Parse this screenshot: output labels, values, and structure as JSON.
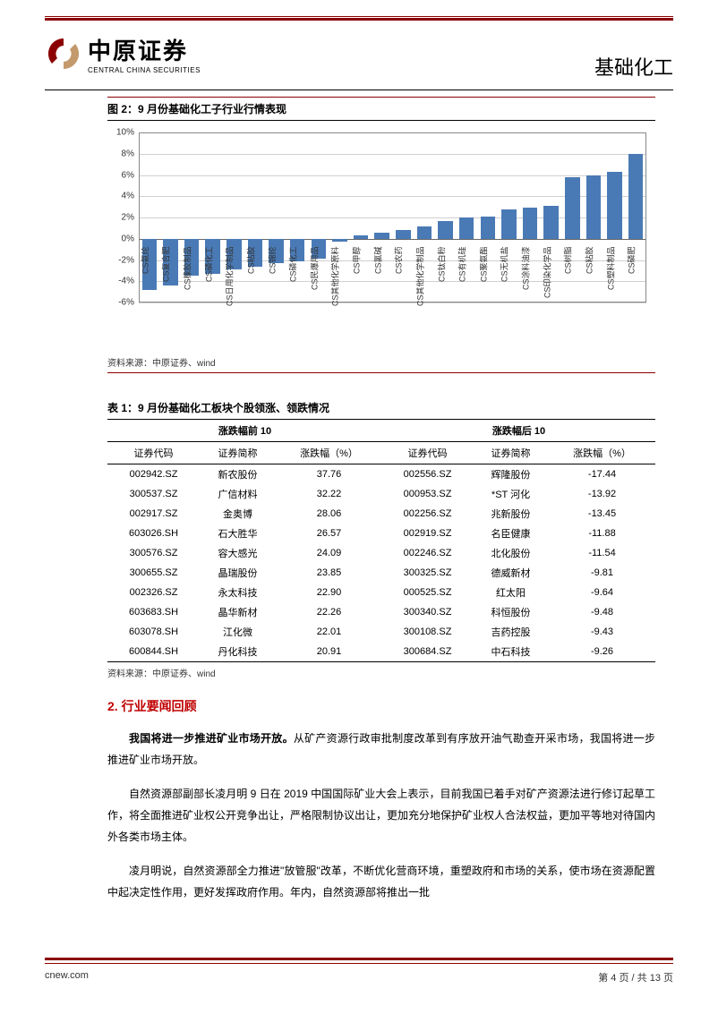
{
  "header": {
    "logo_cn": "中原证券",
    "logo_en": "CENTRAL CHINA SECURITIES",
    "title": "基础化工",
    "logo_color": "#8b0000"
  },
  "figure": {
    "title": "图 2：9 月份基础化工子行业行情表现",
    "source": "资料来源：中原证券、wind",
    "chart": {
      "type": "bar",
      "ylim": [
        -6,
        10
      ],
      "ytick_step": 2,
      "ytick_suffix": "%",
      "bar_color": "#4a7ab5",
      "grid_color": "#d0d0d0",
      "border_color": "#888888",
      "background_color": "#ffffff",
      "label_fontsize": 9,
      "axis_fontsize": 10,
      "categories": [
        "CS氨纶",
        "CS复合肥",
        "CS橡胶制品",
        "CS磷化工",
        "CS日用化学制品",
        "CS粘胶",
        "CS锦纶",
        "CS磷化工",
        "CS民爆用品",
        "CS其他化学原料",
        "CS甲醇",
        "CS氯碱",
        "CS农药",
        "CS其他化学制品",
        "CS钛白粉",
        "CS有机硅",
        "CS聚氨酯",
        "CS无机盐",
        "CS涂料油漆",
        "CS印染化学品",
        "CS树脂",
        "CS粘胶",
        "CS塑料制品",
        "CS磷肥"
      ],
      "values": [
        -4.8,
        -4.4,
        -3.5,
        -3.3,
        -2.9,
        -2.6,
        -2.3,
        -2.1,
        -1.9,
        -0.3,
        0.3,
        0.6,
        0.8,
        1.2,
        1.7,
        2.0,
        2.1,
        2.8,
        2.9,
        3.1,
        5.8,
        6.0,
        6.3,
        8.0
      ]
    }
  },
  "table": {
    "title": "表 1：9 月份基础化工板块个股领涨、领跌情况",
    "source": "资料来源：中原证券、wind",
    "group_headers": [
      "涨跌幅前 10",
      "涨跌幅后 10"
    ],
    "columns": [
      "证券代码",
      "证券简称",
      "涨跌幅（%）",
      "证券代码",
      "证券简称",
      "涨跌幅（%）"
    ],
    "rows": [
      [
        "002942.SZ",
        "新农股份",
        "37.76",
        "002556.SZ",
        "辉隆股份",
        "-17.44"
      ],
      [
        "300537.SZ",
        "广信材料",
        "32.22",
        "000953.SZ",
        "*ST 河化",
        "-13.92"
      ],
      [
        "002917.SZ",
        "金奥博",
        "28.06",
        "002256.SZ",
        "兆新股份",
        "-13.45"
      ],
      [
        "603026.SH",
        "石大胜华",
        "26.57",
        "002919.SZ",
        "名臣健康",
        "-11.88"
      ],
      [
        "300576.SZ",
        "容大感光",
        "24.09",
        "002246.SZ",
        "北化股份",
        "-11.54"
      ],
      [
        "300655.SZ",
        "晶瑞股份",
        "23.85",
        "300325.SZ",
        "德威新材",
        "-9.81"
      ],
      [
        "002326.SZ",
        "永太科技",
        "22.90",
        "000525.SZ",
        "红太阳",
        "-9.64"
      ],
      [
        "603683.SH",
        "晶华新材",
        "22.26",
        "300340.SZ",
        "科恒股份",
        "-9.48"
      ],
      [
        "603078.SH",
        "江化微",
        "22.01",
        "300108.SZ",
        "吉药控股",
        "-9.43"
      ],
      [
        "600844.SH",
        "丹化科技",
        "20.91",
        "300684.SZ",
        "中石科技",
        "-9.26"
      ]
    ]
  },
  "section": {
    "title": "2. 行业要闻回顾",
    "title_color": "#c00000",
    "paragraphs": [
      {
        "bold": "我国将进一步推进矿业市场开放。",
        "text": "从矿产资源行政审批制度改革到有序放开油气勘查开采市场，我国将进一步推进矿业市场开放。"
      },
      {
        "bold": "",
        "text": "自然资源部副部长凌月明 9 日在 2019 中国国际矿业大会上表示，目前我国已着手对矿产资源法进行修订起草工作，将全面推进矿业权公开竞争出让，严格限制协议出让，更加充分地保护矿业权人合法权益，更加平等地对待国内外各类市场主体。"
      },
      {
        "bold": "",
        "text": "凌月明说，自然资源部全力推进\"放管服\"改革，不断优化营商环境，重塑政府和市场的关系，使市场在资源配置中起决定性作用，更好发挥政府作用。年内，自然资源部将推出一批"
      }
    ]
  },
  "footer": {
    "left": "cnew.com",
    "right": "第 4 页  / 共 13 页"
  },
  "colors": {
    "brand_red": "#8b0000",
    "accent_red": "#c00000",
    "text": "#000000"
  }
}
